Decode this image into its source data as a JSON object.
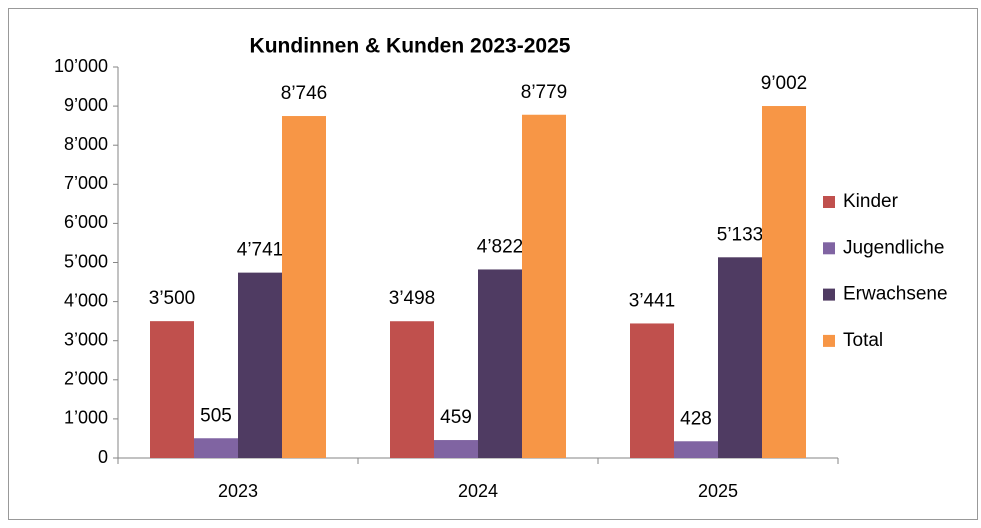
{
  "chart_data": {
    "type": "bar",
    "title": "Kundinnen & Kunden 2023-2025",
    "categories": [
      "2023",
      "2024",
      "2025"
    ],
    "series": [
      {
        "name": "Kinder",
        "color": "#c0504d",
        "values": [
          3500,
          3498,
          3441
        ],
        "value_labels": [
          "3’500",
          "3’498",
          "3’441"
        ]
      },
      {
        "name": "Jugendliche",
        "color": "#8064a2",
        "values": [
          505,
          459,
          428
        ],
        "value_labels": [
          "505",
          "459",
          "428"
        ]
      },
      {
        "name": "Erwachsene",
        "color": "#4f3b62",
        "values": [
          4741,
          4822,
          5133
        ],
        "value_labels": [
          "4’741",
          "4’822",
          "5’133"
        ]
      },
      {
        "name": "Total",
        "color": "#f79646",
        "values": [
          8746,
          8779,
          9002
        ],
        "value_labels": [
          "8’746",
          "8’779",
          "9’002"
        ]
      }
    ],
    "ylim": [
      0,
      10000
    ],
    "yticks": [
      0,
      {
        "value": 1000,
        "label": "1’000"
      },
      {
        "value": 2000,
        "label": "2’000"
      },
      {
        "value": 3000,
        "label": "3’000"
      },
      {
        "value": 4000,
        "label": "4’000"
      },
      {
        "value": 5000,
        "label": "5’000"
      },
      {
        "value": 6000,
        "label": "6’000"
      },
      {
        "value": 7000,
        "label": "7’000"
      },
      {
        "value": 8000,
        "label": "8’000"
      },
      {
        "value": 9000,
        "label": "9’000"
      },
      {
        "value": 10000,
        "label": "10’000"
      }
    ],
    "legend": "right",
    "grid": false
  }
}
